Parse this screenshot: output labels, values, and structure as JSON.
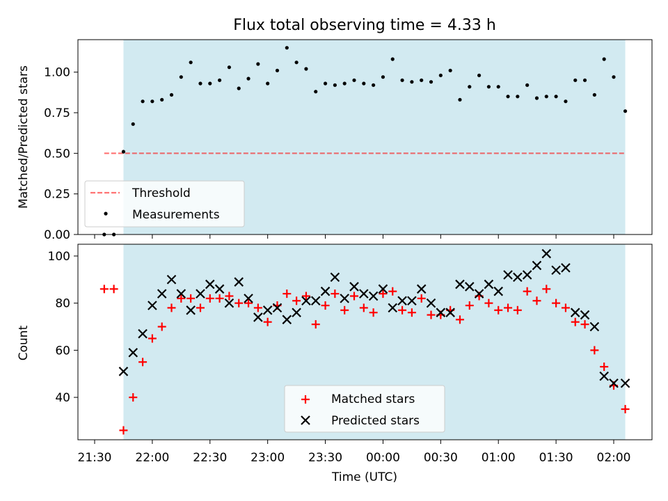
{
  "figure": {
    "title": "Flux total observing time = 4.33 h",
    "xlabel": "Time (UTC)"
  },
  "colors": {
    "shade": "#add8e6",
    "threshold": "#ff0000",
    "matched": "#ff0000",
    "predicted": "#000000",
    "points": "#000000"
  },
  "chart_data": [
    {
      "type": "scatter",
      "ylabel": "Matched/Predicted stars",
      "ylim": [
        0,
        1.2
      ],
      "yticks": [
        "0.00",
        "0.25",
        "0.50",
        "0.75",
        "1.00"
      ],
      "grid": false,
      "legend": "lower-left",
      "shaded_span": [
        "21:45",
        "02:06"
      ],
      "threshold": {
        "name": "Threshold",
        "value": 0.5,
        "x_range": [
          "21:35",
          "02:06"
        ]
      },
      "series": [
        {
          "name": "Measurements",
          "x": [
            "21:35",
            "21:40",
            "21:45",
            "21:50",
            "21:55",
            "22:00",
            "22:05",
            "22:10",
            "22:15",
            "22:20",
            "22:25",
            "22:30",
            "22:35",
            "22:40",
            "22:45",
            "22:50",
            "22:55",
            "23:00",
            "23:05",
            "23:10",
            "23:15",
            "23:20",
            "23:25",
            "23:30",
            "23:35",
            "23:40",
            "23:45",
            "23:50",
            "23:55",
            "00:00",
            "00:05",
            "00:10",
            "00:15",
            "00:20",
            "00:25",
            "00:30",
            "00:35",
            "00:40",
            "00:45",
            "00:50",
            "00:55",
            "01:00",
            "01:05",
            "01:10",
            "01:15",
            "01:20",
            "01:25",
            "01:30",
            "01:35",
            "01:40",
            "01:45",
            "01:50",
            "01:55",
            "02:00",
            "02:06"
          ],
          "y": [
            0.0,
            0.0,
            0.51,
            0.68,
            0.82,
            0.82,
            0.83,
            0.86,
            0.97,
            1.06,
            0.93,
            0.93,
            0.95,
            1.03,
            0.9,
            0.96,
            1.05,
            0.93,
            1.01,
            1.15,
            1.06,
            1.02,
            0.88,
            0.93,
            0.92,
            0.93,
            0.95,
            0.93,
            0.92,
            0.97,
            1.08,
            0.95,
            0.94,
            0.95,
            0.94,
            0.98,
            1.01,
            0.83,
            0.91,
            0.98,
            0.91,
            0.91,
            0.85,
            0.85,
            0.92,
            0.84,
            0.85,
            0.85,
            0.82,
            0.95,
            0.95,
            0.86,
            1.08,
            0.97,
            0.76
          ]
        }
      ]
    },
    {
      "type": "scatter",
      "ylabel": "Count",
      "ylim": [
        22,
        105
      ],
      "yticks": [
        "40",
        "60",
        "80",
        "100"
      ],
      "xticks": [
        "21:30",
        "22:00",
        "22:30",
        "23:00",
        "23:30",
        "00:00",
        "00:30",
        "01:00",
        "01:30",
        "02:00"
      ],
      "grid": false,
      "legend": "lower-center",
      "shaded_span": [
        "21:45",
        "02:06"
      ],
      "series": [
        {
          "name": "Matched stars",
          "x": [
            "21:35",
            "21:40",
            "21:45",
            "21:50",
            "21:55",
            "22:00",
            "22:05",
            "22:10",
            "22:15",
            "22:20",
            "22:25",
            "22:30",
            "22:35",
            "22:40",
            "22:45",
            "22:50",
            "22:55",
            "23:00",
            "23:05",
            "23:10",
            "23:15",
            "23:20",
            "23:25",
            "23:30",
            "23:35",
            "23:40",
            "23:45",
            "23:50",
            "23:55",
            "00:00",
            "00:05",
            "00:10",
            "00:15",
            "00:20",
            "00:25",
            "00:30",
            "00:35",
            "00:40",
            "00:45",
            "00:50",
            "00:55",
            "01:00",
            "01:05",
            "01:10",
            "01:15",
            "01:20",
            "01:25",
            "01:30",
            "01:35",
            "01:40",
            "01:45",
            "01:50",
            "01:55",
            "02:00",
            "02:06"
          ],
          "y": [
            86,
            86,
            26,
            40,
            55,
            65,
            70,
            78,
            82,
            82,
            78,
            82,
            82,
            83,
            80,
            80,
            78,
            72,
            79,
            84,
            81,
            83,
            71,
            79,
            84,
            77,
            83,
            78,
            76,
            84,
            85,
            77,
            76,
            82,
            75,
            75,
            77,
            73,
            79,
            83,
            80,
            77,
            78,
            77,
            85,
            81,
            86,
            80,
            78,
            72,
            71,
            60,
            53,
            45,
            35
          ]
        },
        {
          "name": "Predicted stars",
          "x": [
            "21:45",
            "21:50",
            "21:55",
            "22:00",
            "22:05",
            "22:10",
            "22:15",
            "22:20",
            "22:25",
            "22:30",
            "22:35",
            "22:40",
            "22:45",
            "22:50",
            "22:55",
            "23:00",
            "23:05",
            "23:10",
            "23:15",
            "23:20",
            "23:25",
            "23:30",
            "23:35",
            "23:40",
            "23:45",
            "23:50",
            "23:55",
            "00:00",
            "00:05",
            "00:10",
            "00:15",
            "00:20",
            "00:25",
            "00:30",
            "00:35",
            "00:40",
            "00:45",
            "00:50",
            "00:55",
            "01:00",
            "01:05",
            "01:10",
            "01:15",
            "01:20",
            "01:25",
            "01:30",
            "01:35",
            "01:40",
            "01:45",
            "01:50",
            "01:55",
            "02:00",
            "02:06"
          ],
          "y": [
            51,
            59,
            67,
            79,
            84,
            90,
            84,
            77,
            84,
            88,
            86,
            80,
            89,
            82,
            74,
            77,
            78,
            73,
            76,
            81,
            81,
            85,
            91,
            82,
            87,
            84,
            83,
            86,
            78,
            81,
            81,
            86,
            80,
            76,
            76,
            88,
            87,
            84,
            88,
            85,
            92,
            91,
            92,
            96,
            101,
            94,
            95,
            76,
            75,
            70,
            49,
            46,
            46
          ]
        }
      ]
    }
  ]
}
